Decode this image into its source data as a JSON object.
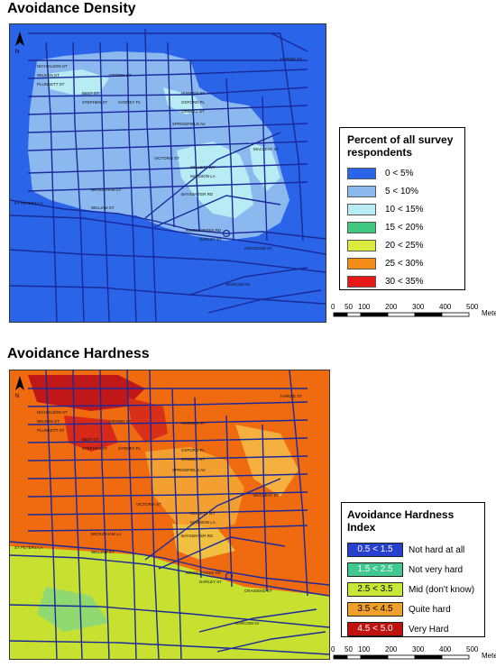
{
  "maps": [
    {
      "title": "Avoidance Density",
      "legend_title": "Percent of all survey respondents",
      "legend_items": [
        {
          "label": "0 < 5%",
          "color": "#2a64e8"
        },
        {
          "label": "5 < 10%",
          "color": "#8cb8f0"
        },
        {
          "label": "10 < 15%",
          "color": "#b8ecf5"
        },
        {
          "label": "15 < 20%",
          "color": "#40c880"
        },
        {
          "label": "20 < 25%",
          "color": "#dcec3c"
        },
        {
          "label": "25 < 30%",
          "color": "#f48c18"
        },
        {
          "label": "30 < 35%",
          "color": "#e81818"
        }
      ]
    },
    {
      "title": "Avoidance Hardness",
      "legend_title": "Avoidance Hardness Index",
      "legend_items": [
        {
          "range": "0.5 < 1.5",
          "label": "Not hard at all",
          "color": "#2840d0"
        },
        {
          "range": "1.5 < 2.5",
          "label": "Not very hard",
          "color": "#40c890"
        },
        {
          "range": "2.5 < 3.5",
          "label": "Mid (don't know)",
          "color": "#c8e838"
        },
        {
          "range": "3.5 < 4.5",
          "label": "Quite hard",
          "color": "#f0a028"
        },
        {
          "range": "4.5 < 5.0",
          "label": "Very Hard",
          "color": "#c01010"
        }
      ]
    }
  ],
  "scale": {
    "ticks": [
      "0",
      "50",
      "100",
      "200",
      "300",
      "400",
      "500"
    ],
    "unit": "Meters"
  },
  "street_labels": [
    "NICHOLSON ST",
    "WILSON ST",
    "PLUNKETT ST",
    "CROWN ST",
    "BEST ST",
    "STEPHEN ST",
    "SYDNEY PL",
    "HUGHES ST",
    "OXFORD PL",
    "ORWELL ST",
    "SPRINGFIELD AV",
    "BAYSWATER RD",
    "KINGS CROSS RD",
    "VICTORIA ST",
    "WILLIAM ST",
    "ST PETERS LA",
    "BROUGHAM LA",
    "MANSION LA",
    "KELLETT WY",
    "CRAIGEND ST",
    "BARCOM AV",
    "DARLEY ST",
    "HARDIE ST",
    "MACLEAY ST"
  ]
}
